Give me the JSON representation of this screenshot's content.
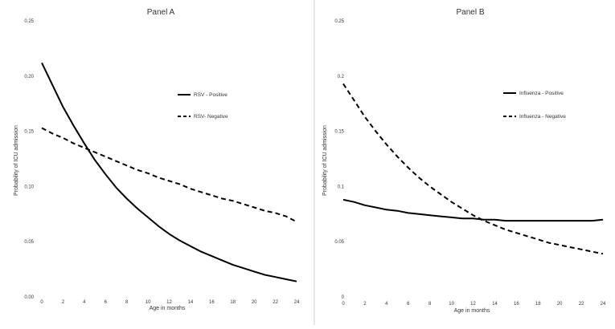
{
  "chart_data": [
    {
      "type": "line",
      "title": "Panel A",
      "xlabel": "Age in months",
      "ylabel": "Probability of ICU admission",
      "xlim": [
        0,
        24
      ],
      "ylim": [
        0,
        0.25
      ],
      "x_ticks": [
        "0",
        "2",
        "4",
        "6",
        "8",
        "10",
        "12",
        "14",
        "16",
        "18",
        "20",
        "22",
        "24"
      ],
      "y_ticks": [
        "0.00",
        "0.05",
        "0.10",
        "0.15",
        "0.20",
        "0.25"
      ],
      "x": [
        0,
        1,
        2,
        3,
        4,
        5,
        6,
        7,
        8,
        9,
        10,
        11,
        12,
        13,
        14,
        15,
        16,
        17,
        18,
        19,
        20,
        21,
        22,
        23,
        24
      ],
      "series": [
        {
          "name": "RSV - Positive",
          "style": "solid",
          "color": "#000000",
          "values": [
            0.212,
            0.192,
            0.172,
            0.155,
            0.139,
            0.124,
            0.111,
            0.099,
            0.089,
            0.08,
            0.072,
            0.064,
            0.057,
            0.051,
            0.046,
            0.041,
            0.037,
            0.033,
            0.029,
            0.026,
            0.023,
            0.02,
            0.018,
            0.016,
            0.014
          ]
        },
        {
          "name": "RSV- Negative",
          "style": "dashed",
          "color": "#000000",
          "values": [
            0.153,
            0.148,
            0.144,
            0.139,
            0.135,
            0.131,
            0.127,
            0.123,
            0.119,
            0.115,
            0.112,
            0.108,
            0.105,
            0.102,
            0.098,
            0.095,
            0.092,
            0.089,
            0.087,
            0.084,
            0.081,
            0.078,
            0.076,
            0.073,
            0.068
          ]
        }
      ],
      "legend_position": "right, upper-middle",
      "grid": false
    },
    {
      "type": "line",
      "title": "Panel B",
      "xlabel": "Age in months",
      "ylabel": "Probability of ICU admission",
      "xlim": [
        0,
        24
      ],
      "ylim": [
        0,
        0.25
      ],
      "x_ticks": [
        "0",
        "2",
        "4",
        "6",
        "8",
        "10",
        "12",
        "14",
        "16",
        "18",
        "20",
        "22",
        "24"
      ],
      "y_ticks": [
        "0",
        "0.05",
        "0.1",
        "0.15",
        "0.2",
        "0.25"
      ],
      "x": [
        0,
        1,
        2,
        3,
        4,
        5,
        6,
        7,
        8,
        9,
        10,
        11,
        12,
        13,
        14,
        15,
        16,
        17,
        18,
        19,
        20,
        21,
        22,
        23,
        24
      ],
      "series": [
        {
          "name": "Influenza - Positive",
          "style": "solid",
          "color": "#000000",
          "values": [
            0.088,
            0.086,
            0.083,
            0.081,
            0.079,
            0.078,
            0.076,
            0.075,
            0.074,
            0.073,
            0.072,
            0.071,
            0.071,
            0.07,
            0.07,
            0.069,
            0.069,
            0.069,
            0.069,
            0.069,
            0.069,
            0.069,
            0.069,
            0.069,
            0.07
          ]
        },
        {
          "name": "Influenza - Negative",
          "style": "dashed",
          "color": "#000000",
          "values": [
            0.193,
            0.178,
            0.163,
            0.15,
            0.138,
            0.127,
            0.117,
            0.108,
            0.1,
            0.093,
            0.086,
            0.08,
            0.074,
            0.069,
            0.065,
            0.061,
            0.058,
            0.055,
            0.052,
            0.049,
            0.047,
            0.045,
            0.043,
            0.041,
            0.039
          ]
        }
      ],
      "legend_position": "right, upper-middle",
      "grid": false
    }
  ]
}
